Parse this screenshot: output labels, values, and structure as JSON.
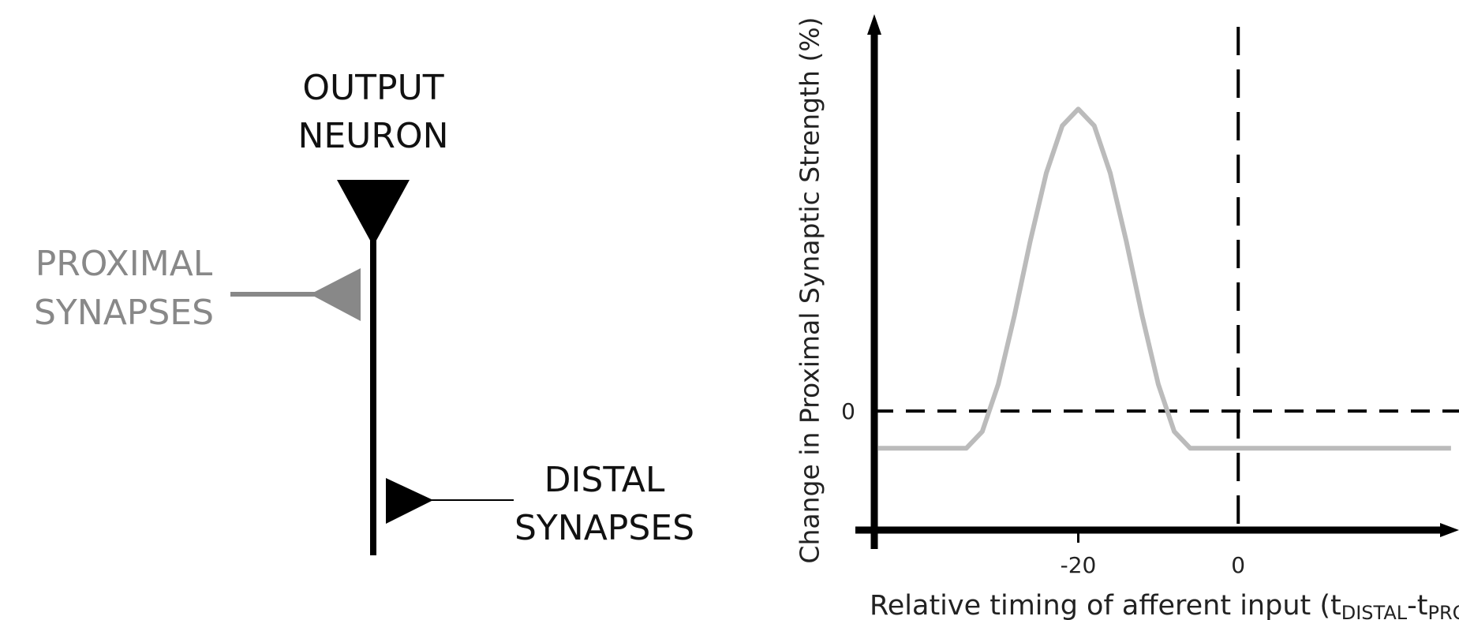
{
  "diagram": {
    "output_label": [
      "OUTPUT",
      "NEURON"
    ],
    "proximal_label": [
      "PROXIMAL",
      "SYNAPSES"
    ],
    "distal_label": [
      "DISTAL",
      "SYNAPSES"
    ]
  },
  "chart_data": {
    "type": "line",
    "ylabel": "Change in Proximal Synaptic Strength (%)",
    "xlabel": [
      "Relative timing of afferent input (t",
      "DISTAL",
      "-t",
      "PROXIMAL",
      ")"
    ],
    "x": [
      -45,
      -34,
      -32,
      -30,
      -28,
      -26,
      -24,
      -22,
      -20,
      -18,
      -16,
      -14,
      -12,
      -10,
      -8,
      -6,
      26.6
    ],
    "series": [
      {
        "color": "#bbbbbb",
        "values": [
          -4,
          -4,
          -2.2,
          2.9,
          10.2,
          18.3,
          25.6,
          30.7,
          32.5,
          30.7,
          25.6,
          18.3,
          10.2,
          2.9,
          -2.2,
          -4,
          -4
        ]
      }
    ],
    "xlim": [
      -45.5,
      27.6
    ],
    "ylim": [
      -12.8,
      42.7
    ],
    "xticks": [
      -20,
      0
    ],
    "yticks": [
      0
    ]
  }
}
